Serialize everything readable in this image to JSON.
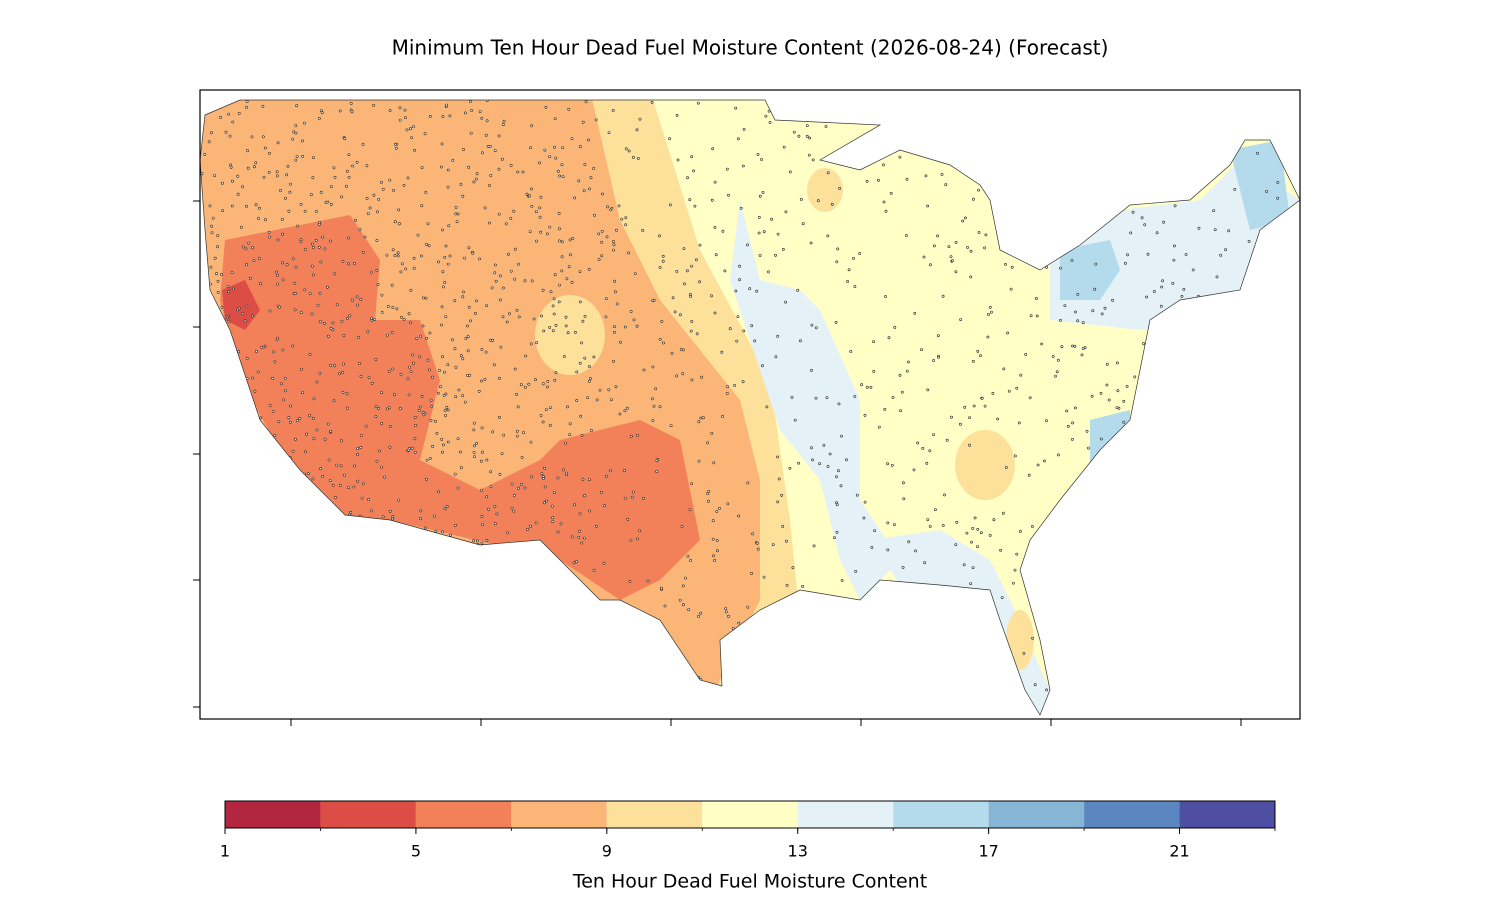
{
  "map": {
    "title": "Minimum Ten Hour Dead Fuel Moisture Content (2026-08-24) (Forecast)",
    "colorbar": {
      "label": "Ten Hour Dead Fuel Moisture Content",
      "levels": [
        1,
        3,
        5,
        7,
        9,
        11,
        13,
        15,
        17,
        19,
        21,
        23
      ],
      "colors": [
        "#b32640",
        "#dc4d45",
        "#f28159",
        "#fbb677",
        "#fde19a",
        "#ffffc6",
        "#e4f2f7",
        "#b3dbeb",
        "#86b5d6",
        "#5b86bf",
        "#4e4fa2"
      ],
      "ticks": [
        1,
        5,
        9,
        13,
        17,
        21
      ]
    }
  }
}
